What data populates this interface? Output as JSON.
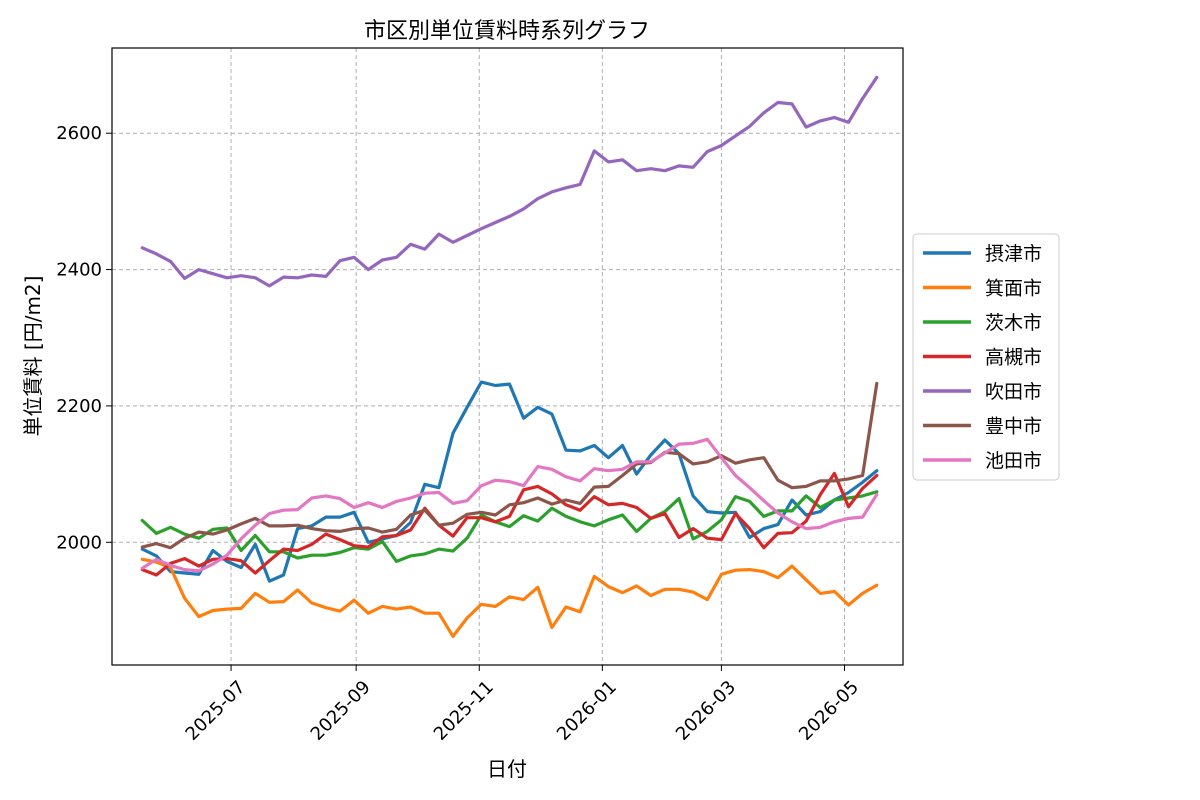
{
  "chart_data": {
    "type": "line",
    "title": "市区別単位賃料時系列グラフ",
    "xlabel": "日付",
    "ylabel": "単位賃料 [円/m2]",
    "x_tick_labels": [
      "2025-07",
      "2025-09",
      "2025-11",
      "2026-01",
      "2026-03",
      "2026-05"
    ],
    "x_tick_dates": [
      "2025-07-01",
      "2025-09-01",
      "2025-11-01",
      "2026-01-01",
      "2026-03-01",
      "2026-05-01"
    ],
    "y_tick_labels": [
      "2000",
      "2200",
      "2400",
      "2600"
    ],
    "y_ticks": [
      2000,
      2200,
      2400,
      2600
    ],
    "xlim": [
      "2025-05-03",
      "2026-05-30"
    ],
    "ylim": [
      1820,
      2725
    ],
    "grid": true,
    "legend_position": "center-right-outside",
    "x": [
      "2025-05-18",
      "2025-05-25",
      "2025-06-01",
      "2025-06-08",
      "2025-06-15",
      "2025-06-22",
      "2025-06-29",
      "2025-07-06",
      "2025-07-13",
      "2025-07-20",
      "2025-07-27",
      "2025-08-03",
      "2025-08-10",
      "2025-08-17",
      "2025-08-24",
      "2025-08-31",
      "2025-09-07",
      "2025-09-14",
      "2025-09-21",
      "2025-09-28",
      "2025-10-05",
      "2025-10-12",
      "2025-10-19",
      "2025-10-26",
      "2025-11-02",
      "2025-11-09",
      "2025-11-16",
      "2025-11-23",
      "2025-11-30",
      "2025-12-07",
      "2025-12-14",
      "2025-12-21",
      "2025-12-28",
      "2026-01-04",
      "2026-01-11",
      "2026-01-18",
      "2026-01-25",
      "2026-02-01",
      "2026-02-08",
      "2026-02-15",
      "2026-02-22",
      "2026-03-01",
      "2026-03-08",
      "2026-03-15",
      "2026-03-22",
      "2026-03-29",
      "2026-04-05",
      "2026-04-12",
      "2026-04-19",
      "2026-04-26",
      "2026-05-03",
      "2026-05-10",
      "2026-05-17"
    ],
    "series": [
      {
        "name": "摂津市",
        "color": "#1f77b4",
        "values": [
          1990,
          1980,
          1957,
          1955,
          1953,
          1988,
          1972,
          1963,
          1997,
          1943,
          1952,
          2020,
          2024,
          2037,
          2037,
          2044,
          2000,
          2005,
          2010,
          2029,
          2085,
          2080,
          2160,
          2198,
          2235,
          2230,
          2232,
          2182,
          2198,
          2188,
          2135,
          2134,
          2142,
          2124,
          2142,
          2100,
          2128,
          2150,
          2130,
          2068,
          2045,
          2043,
          2044,
          2007,
          2020,
          2026,
          2062,
          2040,
          2045,
          2062,
          2073,
          2088,
          2105
        ]
      },
      {
        "name": "箕面市",
        "color": "#ff7f0e",
        "values": [
          1975,
          1971,
          1963,
          1918,
          1891,
          1900,
          1902,
          1903,
          1925,
          1912,
          1913,
          1930,
          1911,
          1904,
          1899,
          1915,
          1896,
          1906,
          1902,
          1905,
          1896,
          1896,
          1862,
          1889,
          1909,
          1906,
          1920,
          1916,
          1934,
          1875,
          1905,
          1898,
          1950,
          1935,
          1926,
          1936,
          1922,
          1931,
          1931,
          1927,
          1916,
          1953,
          1959,
          1960,
          1957,
          1948,
          1965,
          1945,
          1925,
          1928,
          1908,
          1925,
          1937
        ]
      },
      {
        "name": "茨木市",
        "color": "#2ca02c",
        "values": [
          2032,
          2013,
          2022,
          2012,
          2006,
          2019,
          2021,
          1988,
          2010,
          1986,
          1986,
          1977,
          1981,
          1981,
          1985,
          1992,
          1990,
          2001,
          1972,
          1980,
          1983,
          1990,
          1987,
          2006,
          2040,
          2030,
          2023,
          2039,
          2031,
          2050,
          2038,
          2030,
          2024,
          2033,
          2040,
          2016,
          2035,
          2045,
          2064,
          2005,
          2016,
          2033,
          2067,
          2060,
          2038,
          2046,
          2046,
          2068,
          2051,
          2062,
          2065,
          2068,
          2074
        ]
      },
      {
        "name": "高槻市",
        "color": "#d62728",
        "values": [
          1960,
          1952,
          1969,
          1976,
          1965,
          1975,
          1976,
          1973,
          1955,
          1973,
          1990,
          1988,
          1997,
          2012,
          2004,
          1995,
          1993,
          2008,
          2010,
          2018,
          2050,
          2025,
          2009,
          2036,
          2036,
          2030,
          2038,
          2077,
          2082,
          2071,
          2055,
          2047,
          2067,
          2055,
          2057,
          2051,
          2035,
          2042,
          2007,
          2020,
          2006,
          2004,
          2042,
          2020,
          1992,
          2013,
          2014,
          2031,
          2070,
          2101,
          2052,
          2079,
          2098
        ]
      },
      {
        "name": "吹田市",
        "color": "#9467bd",
        "values": [
          2432,
          2423,
          2412,
          2387,
          2400,
          2394,
          2388,
          2391,
          2388,
          2376,
          2389,
          2388,
          2392,
          2390,
          2413,
          2418,
          2400,
          2414,
          2418,
          2437,
          2430,
          2452,
          2440,
          2450,
          2460,
          2469,
          2478,
          2489,
          2504,
          2514,
          2520,
          2525,
          2574,
          2558,
          2561,
          2545,
          2548,
          2545,
          2552,
          2550,
          2573,
          2582,
          2596,
          2610,
          2630,
          2645,
          2643,
          2609,
          2618,
          2623,
          2616,
          2651,
          2682
        ]
      },
      {
        "name": "豊中市",
        "color": "#8c564b",
        "values": [
          1993,
          1998,
          1992,
          2006,
          2015,
          2012,
          2018,
          2027,
          2035,
          2024,
          2024,
          2025,
          2020,
          2017,
          2016,
          2020,
          2021,
          2015,
          2019,
          2040,
          2047,
          2025,
          2028,
          2041,
          2044,
          2040,
          2055,
          2058,
          2065,
          2056,
          2062,
          2057,
          2081,
          2082,
          2098,
          2115,
          2117,
          2132,
          2130,
          2115,
          2118,
          2127,
          2116,
          2121,
          2124,
          2091,
          2080,
          2082,
          2090,
          2090,
          2093,
          2098,
          2233
        ]
      },
      {
        "name": "池田市",
        "color": "#e377c2",
        "values": [
          1962,
          1975,
          1966,
          1960,
          1958,
          1968,
          1981,
          2005,
          2025,
          2042,
          2047,
          2048,
          2065,
          2068,
          2064,
          2051,
          2058,
          2051,
          2060,
          2065,
          2072,
          2073,
          2057,
          2061,
          2083,
          2091,
          2089,
          2083,
          2111,
          2107,
          2096,
          2090,
          2108,
          2105,
          2107,
          2118,
          2118,
          2131,
          2144,
          2145,
          2151,
          2124,
          2098,
          2080,
          2061,
          2043,
          2030,
          2020,
          2022,
          2030,
          2035,
          2037,
          2070
        ]
      }
    ]
  }
}
